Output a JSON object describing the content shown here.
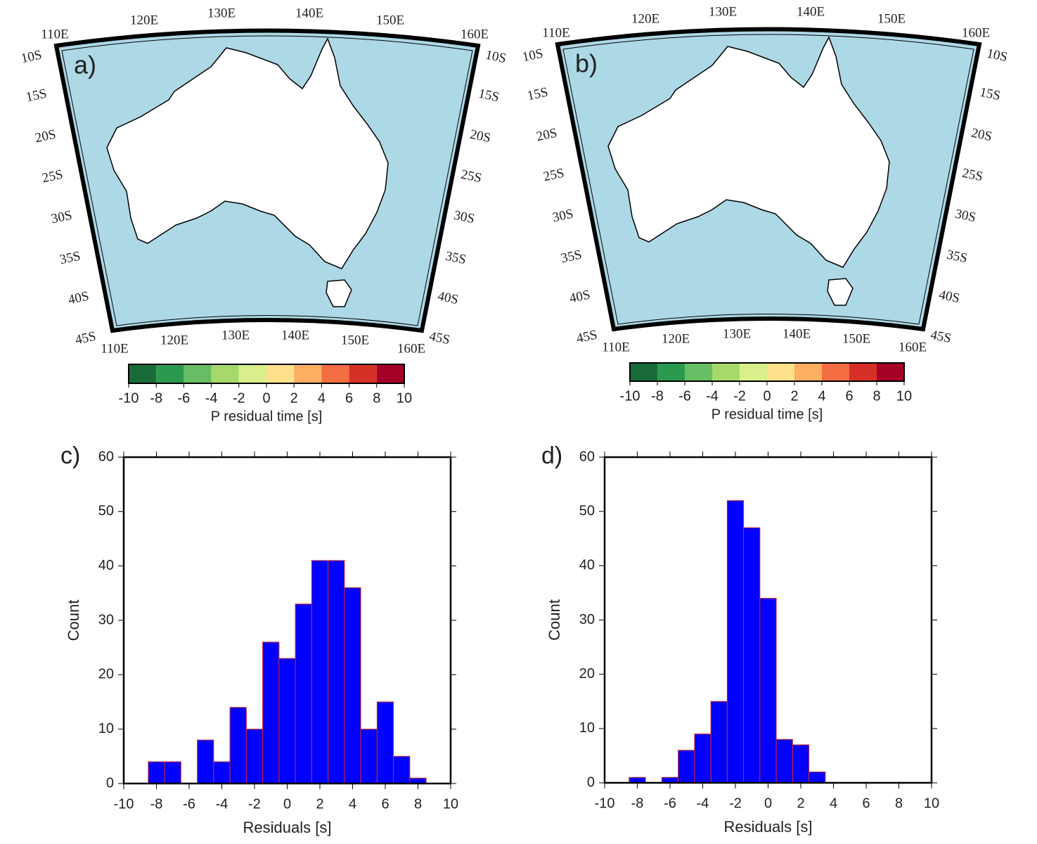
{
  "chart_data": [
    {
      "type": "map",
      "panel_label": "a)",
      "lon_labels": [
        "110E",
        "120E",
        "130E",
        "140E",
        "150E",
        "160E"
      ],
      "lat_labels": [
        "10S",
        "15S",
        "20S",
        "25S",
        "30S",
        "35S",
        "40S",
        "45S"
      ],
      "colorbar": {
        "ticks": [
          -10,
          -8,
          -6,
          -4,
          -2,
          0,
          2,
          4,
          6,
          8,
          10
        ],
        "colors": [
          "#1a6b3a",
          "#2b9a4f",
          "#66bd63",
          "#a6d96a",
          "#d9ef8b",
          "#fee08b",
          "#fdae61",
          "#f46d43",
          "#d73027",
          "#a50026"
        ],
        "label": "P residual time [s]"
      }
    },
    {
      "type": "map",
      "panel_label": "b)",
      "lon_labels": [
        "110E",
        "120E",
        "130E",
        "140E",
        "150E",
        "160E"
      ],
      "lat_labels": [
        "10S",
        "15S",
        "20S",
        "25S",
        "30S",
        "35S",
        "40S",
        "45S"
      ],
      "colorbar": {
        "ticks": [
          -10,
          -8,
          -6,
          -4,
          -2,
          0,
          2,
          4,
          6,
          8,
          10
        ],
        "colors": [
          "#1a6b3a",
          "#2b9a4f",
          "#66bd63",
          "#a6d96a",
          "#d9ef8b",
          "#fee08b",
          "#fdae61",
          "#f46d43",
          "#d73027",
          "#a50026"
        ],
        "label": "P residual time [s]"
      }
    },
    {
      "type": "histogram",
      "panel_label": "c)",
      "x_label": "Residuals [s]",
      "y_label": "Count",
      "bins": [
        -8.5,
        -7.5,
        -6.5,
        -5.5,
        -4.5,
        -3.5,
        -2.5,
        -1.5,
        -0.5,
        0.5,
        1.5,
        2.5,
        3.5,
        4.5,
        5.5,
        6.5,
        7.5,
        8.5
      ],
      "values": [
        4,
        4,
        0,
        8,
        4,
        14,
        10,
        26,
        23,
        33,
        41,
        41,
        36,
        10,
        15,
        5,
        1
      ],
      "color": "#0000ff",
      "edge_color": "#d62728",
      "xlim": [
        -10,
        10
      ],
      "xticks": [
        -10,
        -8,
        -6,
        -4,
        -2,
        0,
        2,
        4,
        6,
        8,
        10
      ],
      "ylim": [
        0,
        60
      ],
      "yticks": [
        0,
        10,
        20,
        30,
        40,
        50,
        60
      ]
    },
    {
      "type": "histogram",
      "panel_label": "d)",
      "x_label": "Residuals [s]",
      "y_label": "Count",
      "bins": [
        -8.5,
        -7.5,
        -6.5,
        -5.5,
        -4.5,
        -3.5,
        -2.5,
        -1.5,
        -0.5,
        0.5,
        1.5,
        2.5,
        3.5
      ],
      "values": [
        1,
        0,
        1,
        6,
        9,
        15,
        52,
        47,
        34,
        8,
        7,
        2
      ],
      "color": "#0000ff",
      "edge_color": "#d62728",
      "xlim": [
        -10,
        10
      ],
      "xticks": [
        -10,
        -8,
        -6,
        -4,
        -2,
        0,
        2,
        4,
        6,
        8,
        10
      ],
      "ylim": [
        0,
        60
      ],
      "yticks": [
        0,
        10,
        20,
        30,
        40,
        50,
        60
      ]
    }
  ]
}
